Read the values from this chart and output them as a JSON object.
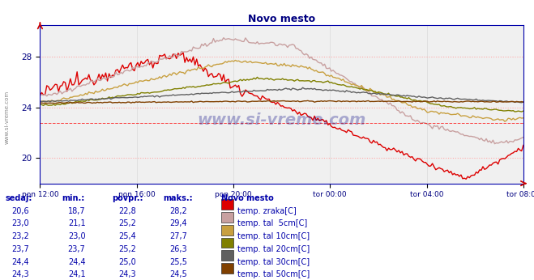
{
  "title": "Novo mesto",
  "bg_color": "#ffffff",
  "plot_bg_color": "#f0f0f0",
  "x_labels": [
    "pon 12:00",
    "pon 16:00",
    "pon 20:00",
    "tor 00:00",
    "tor 04:00",
    "tor 08:00"
  ],
  "y_ticks": [
    20,
    24,
    28
  ],
  "ylim": [
    18.0,
    30.5
  ],
  "xlim": [
    0,
    287
  ],
  "series": [
    {
      "label": "temp. zraka[C]",
      "color": "#dd0000",
      "lw": 1.0
    },
    {
      "label": "temp. tal  5cm[C]",
      "color": "#c8a0a0",
      "lw": 1.0
    },
    {
      "label": "temp. tal 10cm[C]",
      "color": "#c8a040",
      "lw": 1.0
    },
    {
      "label": "temp. tal 20cm[C]",
      "color": "#808000",
      "lw": 1.0
    },
    {
      "label": "temp. tal 30cm[C]",
      "color": "#606060",
      "lw": 1.0
    },
    {
      "label": "temp. tal 50cm[C]",
      "color": "#804000",
      "lw": 1.0
    }
  ],
  "table_headers": [
    "sedaj:",
    "min.:",
    "povpr.:",
    "maks.:"
  ],
  "table_rows": [
    [
      20.6,
      18.7,
      22.8,
      28.2
    ],
    [
      23.0,
      21.1,
      25.2,
      29.4
    ],
    [
      23.2,
      23.0,
      25.4,
      27.7
    ],
    [
      23.7,
      23.7,
      25.2,
      26.3
    ],
    [
      24.4,
      24.4,
      25.0,
      25.5
    ],
    [
      24.3,
      24.1,
      24.3,
      24.5
    ]
  ],
  "watermark": "www.si-vreme.com",
  "n_points": 288,
  "hgrid_color": "#ffaaaa",
  "hgrid_style": ":",
  "vgrid_color": "#dddddd",
  "vgrid_style": "-",
  "spine_color": "#0000aa",
  "tick_color": "#000080",
  "title_color": "#000080",
  "table_text_color": "#0000aa",
  "sidebar_text": "www.si-vreme.com"
}
